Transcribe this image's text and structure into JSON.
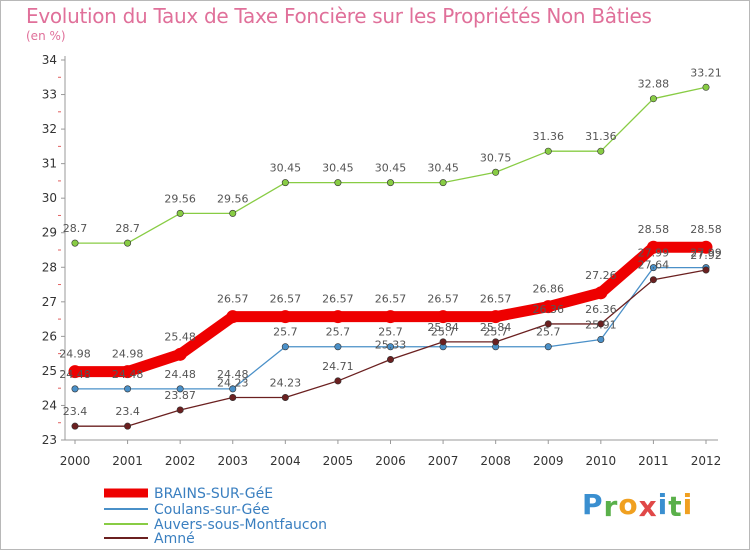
{
  "header": {
    "title": "Evolution du Taux de Taxe Foncière sur les Propriétés Non Bâties",
    "unit": "(en %)"
  },
  "logo": {
    "letters": [
      "P",
      "r",
      "o",
      "x",
      "i",
      "t",
      "i"
    ],
    "colors": [
      "#3a8fd0",
      "#5ab04a",
      "#f0a020",
      "#e04848",
      "#3a8fd0",
      "#5ab04a",
      "#f0a020"
    ]
  },
  "chart_data": {
    "type": "line",
    "title": "Evolution du Taux de Taxe Foncière sur les Propriétés Non Bâties",
    "ylabel": "(en %)",
    "x": [
      "2000",
      "2001",
      "2002",
      "2003",
      "2004",
      "2005",
      "2006",
      "2007",
      "2008",
      "2009",
      "2010",
      "2011",
      "2012"
    ],
    "ylim": [
      23,
      34
    ],
    "yticks": [
      "23",
      "24",
      "25",
      "26",
      "27",
      "28",
      "29",
      "30",
      "31",
      "32",
      "33",
      "34"
    ],
    "grid": false,
    "legend": "bottom-left",
    "series": [
      {
        "name": "BRAINS-SUR-GéE",
        "color": "#ee0000",
        "values": [
          24.98,
          24.98,
          25.48,
          26.57,
          26.57,
          26.57,
          26.57,
          26.57,
          26.57,
          26.86,
          27.26,
          28.58,
          28.58
        ],
        "labels": [
          "24.98",
          "24.98",
          "25.48",
          "26.57",
          "26.57",
          "26.57",
          "26.57",
          "26.57",
          "26.57",
          "26.86",
          "27.26",
          "28.58",
          "28.58"
        ]
      },
      {
        "name": "Coulans-sur-Gée",
        "color": "#4a90c8",
        "values": [
          24.48,
          24.48,
          24.48,
          24.48,
          25.7,
          25.7,
          25.7,
          25.7,
          25.7,
          25.7,
          25.91,
          27.99,
          27.99
        ],
        "labels": [
          "24.48",
          "24.48",
          "24.48",
          "24.48",
          "25.7",
          "25.7",
          "25.7",
          "25.7",
          "25.7",
          "25.7",
          "25.91",
          "27.99",
          "27.99"
        ]
      },
      {
        "name": "Auvers-sous-Montfaucon",
        "color": "#88cc44",
        "values": [
          28.7,
          28.7,
          29.56,
          29.56,
          30.45,
          30.45,
          30.45,
          30.45,
          30.75,
          31.36,
          31.36,
          32.88,
          33.21
        ],
        "labels": [
          "28.7",
          "28.7",
          "29.56",
          "29.56",
          "30.45",
          "30.45",
          "30.45",
          "30.45",
          "30.75",
          "31.36",
          "31.36",
          "32.88",
          "33.21"
        ]
      },
      {
        "name": "Amné",
        "color": "#6b2020",
        "values": [
          23.4,
          23.4,
          23.87,
          24.23,
          24.23,
          24.71,
          25.33,
          25.84,
          25.84,
          26.36,
          26.36,
          27.64,
          27.92
        ],
        "labels": [
          "23.4",
          "23.4",
          "23.87",
          "24.23",
          "24.23",
          "24.71",
          "25.33",
          "25.84",
          "25.84",
          "26.36",
          "26.36",
          "27.64",
          "27.92"
        ]
      }
    ]
  }
}
